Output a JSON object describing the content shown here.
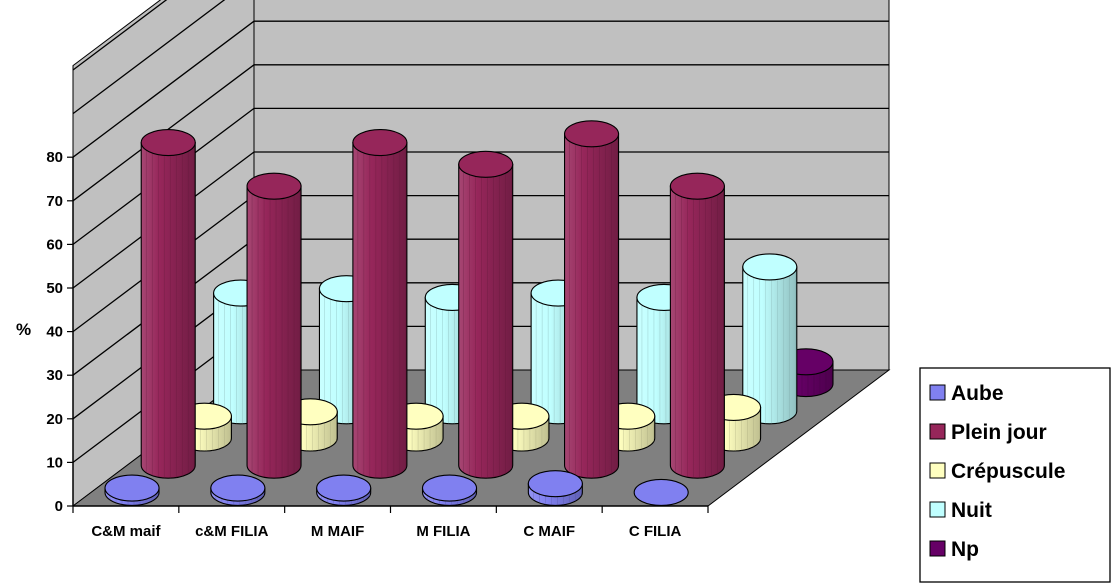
{
  "chart_data": {
    "type": "bar",
    "style": "3d-cylinder",
    "title": "",
    "xlabel": "",
    "ylabel": "%",
    "ylim": [
      0,
      80
    ],
    "yticks": [
      "0",
      "10",
      "20",
      "30",
      "40",
      "50",
      "60",
      "70",
      "80"
    ],
    "grid": true,
    "legend_position": "bottom-right",
    "categories": [
      "C&M maif",
      "c&M FILIA",
      "M MAIF",
      "M FILIA",
      "C MAIF",
      "C FILIA"
    ],
    "series": [
      {
        "name": "Aube",
        "color": "#8080f0",
        "values": [
          1,
          1,
          1,
          1,
          2,
          0
        ]
      },
      {
        "name": "Plein jour",
        "color": "#96265a",
        "values": [
          74,
          64,
          74,
          69,
          76,
          64
        ]
      },
      {
        "name": "Crépuscule",
        "color": "#ffffc0",
        "values": [
          5,
          6,
          5,
          5,
          5,
          7
        ]
      },
      {
        "name": "Nuit",
        "color": "#c0ffff",
        "values": [
          27,
          28,
          26,
          27,
          26,
          33
        ]
      },
      {
        "name": "Np",
        "color": "#660066",
        "values": [
          0,
          0,
          0,
          0,
          0,
          5
        ]
      }
    ]
  }
}
